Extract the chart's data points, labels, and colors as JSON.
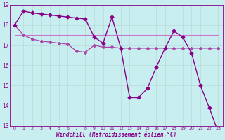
{
  "series1": {
    "x": [
      0,
      1,
      2,
      3,
      4,
      5,
      6,
      7,
      8,
      9,
      10,
      11,
      12,
      13,
      14,
      15,
      16,
      17,
      18,
      19,
      20,
      21,
      22,
      23
    ],
    "y": [
      18.0,
      18.7,
      18.6,
      18.55,
      18.5,
      18.45,
      18.4,
      18.35,
      18.3,
      17.4,
      17.1,
      18.4,
      16.85,
      14.4,
      14.4,
      14.85,
      15.9,
      16.85,
      17.7,
      17.4,
      16.6,
      15.0,
      13.9,
      12.7
    ],
    "color": "#880088",
    "linewidth": 1.0,
    "marker": "D",
    "markersize": 2.5
  },
  "series2": {
    "x": [
      0,
      1,
      2,
      3,
      4,
      5,
      6,
      7,
      8,
      9,
      10,
      11,
      12,
      13,
      14,
      15,
      16,
      17,
      18,
      19,
      20,
      21,
      22,
      23
    ],
    "y": [
      18.0,
      17.5,
      17.3,
      17.2,
      17.15,
      17.1,
      17.05,
      16.7,
      16.65,
      17.0,
      16.9,
      16.9,
      16.85,
      16.85,
      16.85,
      16.85,
      16.85,
      16.85,
      16.85,
      16.85,
      16.85,
      16.85,
      16.85,
      16.85
    ],
    "color": "#aa44aa",
    "linewidth": 0.9,
    "marker": "D",
    "markersize": 2.0
  },
  "series3": {
    "x": [
      0,
      1,
      2,
      3,
      4,
      5,
      6,
      7,
      8,
      9,
      10,
      11,
      12,
      13,
      14,
      15,
      16,
      17,
      18,
      19,
      20,
      21,
      22,
      23
    ],
    "y": [
      17.5,
      17.5,
      17.5,
      17.5,
      17.5,
      17.5,
      17.5,
      17.5,
      17.5,
      17.5,
      17.5,
      17.5,
      17.5,
      17.5,
      17.5,
      17.5,
      17.5,
      17.5,
      17.5,
      17.5,
      17.5,
      17.5,
      17.5,
      17.5
    ],
    "color": "#cc77cc",
    "linewidth": 0.8,
    "marker": null,
    "markersize": 0
  },
  "ylim": [
    13,
    19
  ],
  "xlim": [
    -0.5,
    23.5
  ],
  "yticks": [
    13,
    14,
    15,
    16,
    17,
    18,
    19
  ],
  "xticks": [
    0,
    1,
    2,
    3,
    4,
    5,
    6,
    7,
    8,
    9,
    10,
    11,
    12,
    13,
    14,
    15,
    16,
    17,
    18,
    19,
    20,
    21,
    22,
    23
  ],
  "xlabel": "Windchill (Refroidissement éolien,°C)",
  "bgcolor": "#c8eef0",
  "grid_color": "#aadddd",
  "text_color": "#880088",
  "spine_color": "#880088"
}
